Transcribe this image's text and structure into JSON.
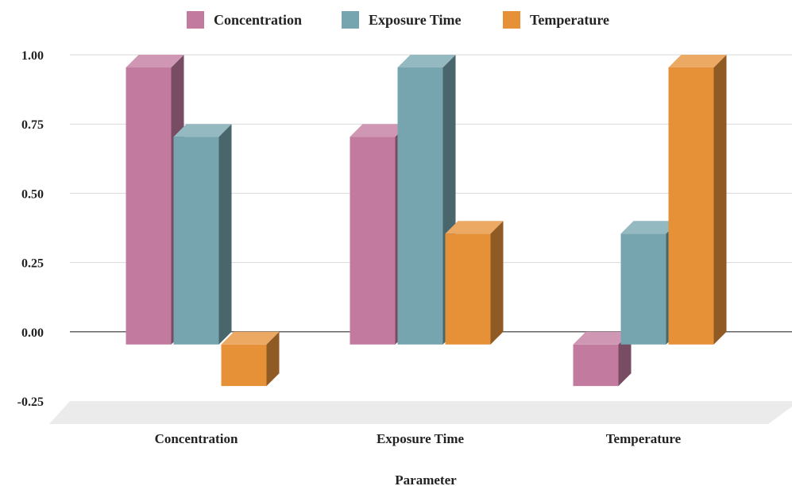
{
  "chart_data": {
    "type": "bar",
    "style": "3d-clustered-column",
    "categories": [
      "Concentration",
      "Exposure Time",
      "Temperature"
    ],
    "series": [
      {
        "name": "Concentration",
        "color": "#c27a9e",
        "values": [
          1.0,
          0.75,
          -0.15
        ]
      },
      {
        "name": "Exposure Time",
        "color": "#76a5af",
        "values": [
          0.75,
          1.0,
          0.4
        ]
      },
      {
        "name": "Temperature",
        "color": "#e69138",
        "values": [
          -0.15,
          0.4,
          1.0
        ]
      }
    ],
    "xlabel": "Parameter",
    "ylabel": "",
    "ylim": [
      -0.25,
      1.0
    ],
    "yticks": [
      -0.25,
      0.0,
      0.25,
      0.5,
      0.75,
      1.0
    ],
    "ytick_labels": [
      "-0.25",
      "0.00",
      "0.25",
      "0.50",
      "0.75",
      "1.00"
    ],
    "grid": true,
    "legend_position": "top-center"
  }
}
